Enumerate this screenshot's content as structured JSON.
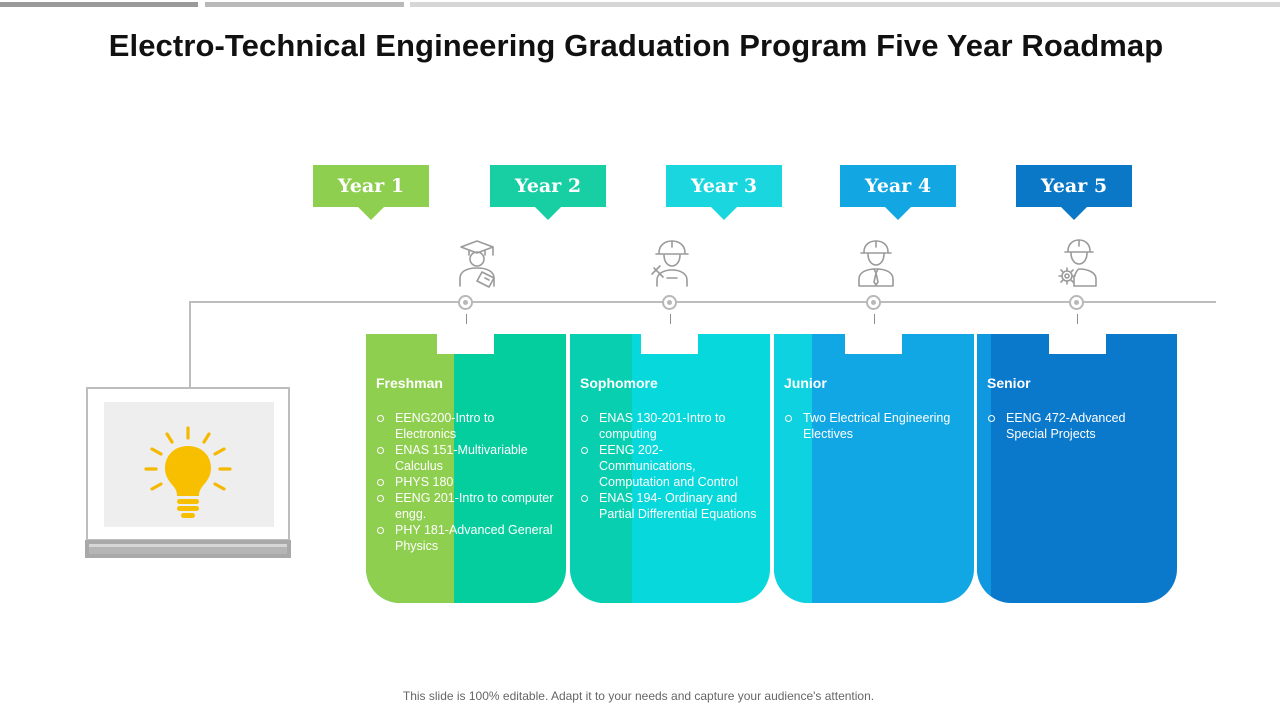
{
  "title": "Electro-Technical Engineering Graduation Program Five Year Roadmap",
  "years": [
    {
      "label": "Year 1",
      "color": "#8fcf4f"
    },
    {
      "label": "Year 2",
      "color": "#17cfa3"
    },
    {
      "label": "Year 3",
      "color": "#1ad6df"
    },
    {
      "label": "Year 4",
      "color": "#12a6e2"
    },
    {
      "label": "Year 5",
      "color": "#0a78c6"
    }
  ],
  "icons": {
    "bulb": "light-bulb-icon",
    "persons": [
      "graduate-icon",
      "engineer-icon",
      "worker-icon",
      "senior-engineer-icon"
    ]
  },
  "stages": [
    {
      "title": "Freshman",
      "color_left": "#8fcf4f",
      "color_right": "#05ce9e",
      "items": [
        "EENG200-Intro to Electronics",
        "ENAS 151-Multivariable Calculus",
        "PHYS 180",
        "EENG 201-Intro to computer engg.",
        "PHY 181-Advanced General Physics"
      ]
    },
    {
      "title": "Sophomore",
      "color_left": "#08cfb0",
      "color_right": "#06d8dc",
      "items": [
        "ENAS 130-201-Intro to computing",
        "EENG 202-Communications, Computation and Control",
        "ENAS 194- Ordinary and Partial Differential Equations"
      ]
    },
    {
      "title": "Junior",
      "color_left": "#0fd2e0",
      "color_right": "#11a7e4",
      "items": [
        "Two Electrical Engineering Electives"
      ]
    },
    {
      "title": "Senior",
      "color_left": "#0f98df",
      "color_right": "#0a78cb",
      "items": [
        "EENG 472-Advanced Special Projects"
      ]
    }
  ],
  "footer": "This slide is 100% editable. Adapt it to your needs and capture your audience's attention."
}
